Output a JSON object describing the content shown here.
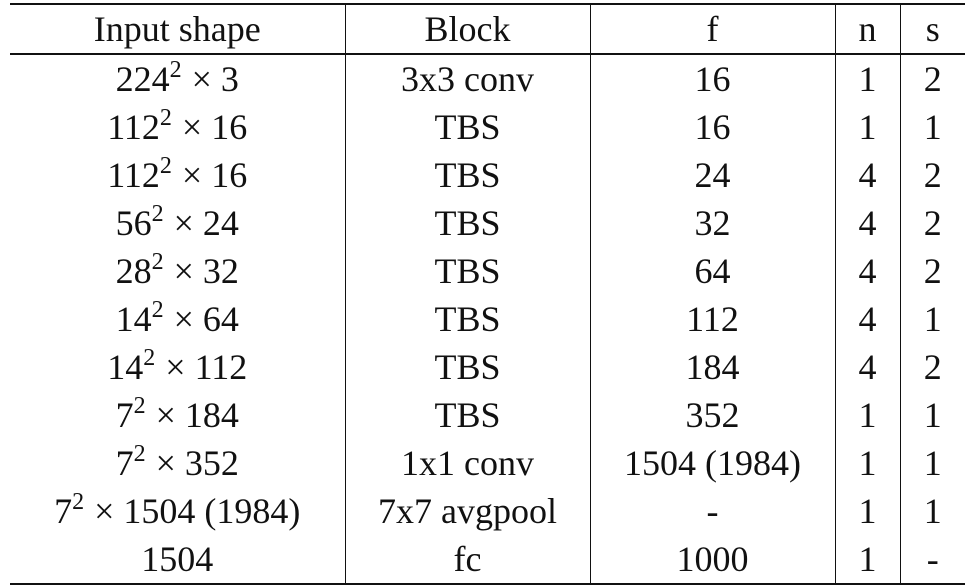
{
  "table": {
    "header": [
      "Input shape",
      "Block",
      "f",
      "n",
      "s"
    ],
    "rows": [
      [
        {
          "base": "224",
          "exp": "2",
          "rest": "× 3"
        },
        "3x3 conv",
        "16",
        "1",
        "2"
      ],
      [
        {
          "base": "112",
          "exp": "2",
          "rest": "× 16"
        },
        "TBS",
        "16",
        "1",
        "1"
      ],
      [
        {
          "base": "112",
          "exp": "2",
          "rest": "× 16"
        },
        "TBS",
        "24",
        "4",
        "2"
      ],
      [
        {
          "base": "56",
          "exp": "2",
          "rest": "× 24"
        },
        "TBS",
        "32",
        "4",
        "2"
      ],
      [
        {
          "base": "28",
          "exp": "2",
          "rest": "× 32"
        },
        "TBS",
        "64",
        "4",
        "2"
      ],
      [
        {
          "base": "14",
          "exp": "2",
          "rest": "× 64"
        },
        "TBS",
        "112",
        "4",
        "1"
      ],
      [
        {
          "base": "14",
          "exp": "2",
          "rest": "× 112"
        },
        "TBS",
        "184",
        "4",
        "2"
      ],
      [
        {
          "base": "7",
          "exp": "2",
          "rest": "× 184"
        },
        "TBS",
        "352",
        "1",
        "1"
      ],
      [
        {
          "base": "7",
          "exp": "2",
          "rest": "× 352"
        },
        "1x1 conv",
        "1504 (1984)",
        "1",
        "1"
      ],
      [
        {
          "base": "7",
          "exp": "2",
          "rest": "× 1504 (1984)"
        },
        "7x7 avgpool",
        "-",
        "1",
        "1"
      ],
      [
        "1504",
        "fc",
        "1000",
        "1",
        "-"
      ]
    ]
  }
}
